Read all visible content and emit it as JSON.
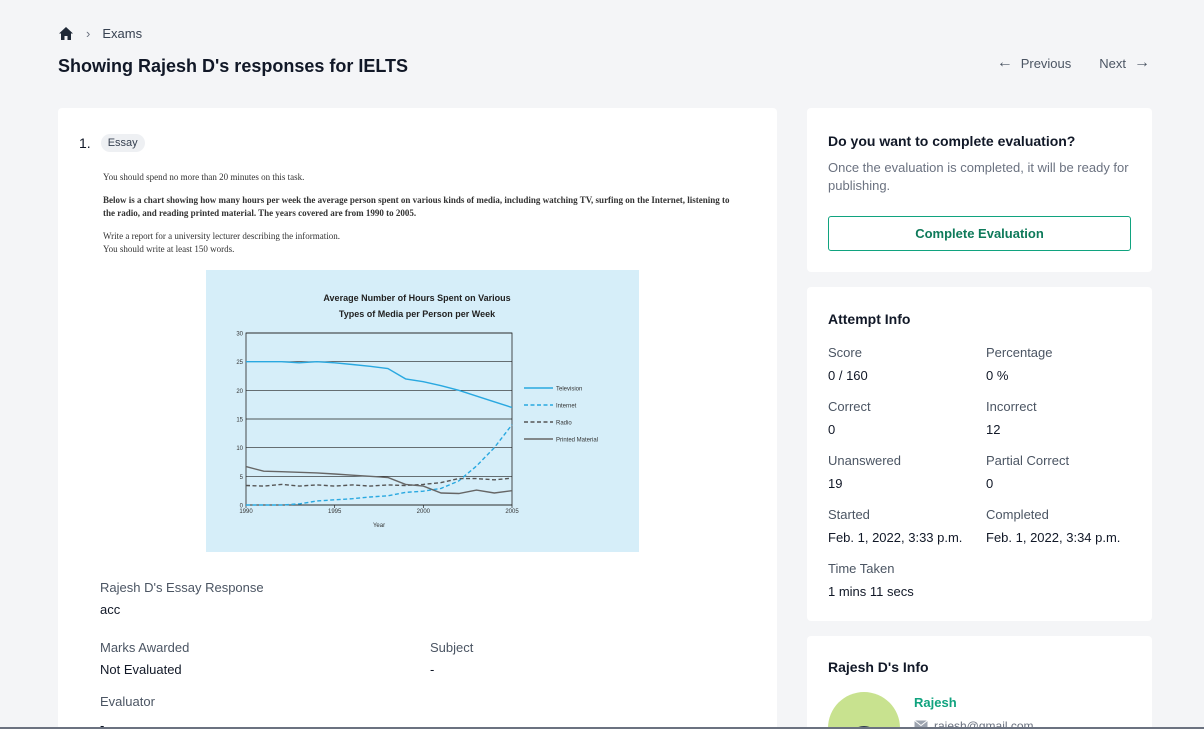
{
  "breadcrumb": {
    "current": "Exams"
  },
  "page_title": "Showing Rajesh D's responses for IELTS",
  "pager": {
    "previous": "Previous",
    "next": "Next"
  },
  "question": {
    "number": "1.",
    "type_badge": "Essay",
    "instructions": [
      "You should spend no more than 20 minutes on this task.",
      "Below is a chart showing how many hours per week the average person spent on various kinds of media, including watching TV, surfing on the Internet, listening to the radio, and reading printed material. The years covered are from 1990 to 2005.",
      "Write a report for a university lecturer describing the information.",
      "You should write at least 150 words."
    ]
  },
  "chart_data": {
    "type": "line",
    "title": "Average Number of Hours Spent on Various Types of Media per Person per Week",
    "xlabel": "Year",
    "ylabel": "",
    "xlim": [
      1990,
      2005
    ],
    "ylim": [
      0,
      30
    ],
    "x_ticks": [
      "1990",
      "1995",
      "2000",
      "2005"
    ],
    "y_ticks": [
      "0",
      "5",
      "10",
      "15",
      "20",
      "25",
      "30"
    ],
    "grid": "horizontal",
    "legend_position": "right",
    "x": [
      1990,
      1991,
      1992,
      1993,
      1994,
      1995,
      1996,
      1997,
      1998,
      1999,
      2000,
      2001,
      2002,
      2003,
      2004,
      2005
    ],
    "series": [
      {
        "name": "Television",
        "style": "solid",
        "color": "#29a8e0",
        "values": [
          25,
          25,
          25,
          24.8,
          25,
          24.8,
          24.5,
          24.2,
          23.8,
          22,
          21.5,
          20.8,
          20,
          19,
          18,
          17
        ]
      },
      {
        "name": "Internet",
        "style": "dashed",
        "color": "#29a8e0",
        "values": [
          0,
          0,
          0,
          0.2,
          0.7,
          0.9,
          1.1,
          1.4,
          1.6,
          2.2,
          2.4,
          2.9,
          4.2,
          6.8,
          10,
          14
        ]
      },
      {
        "name": "Radio",
        "style": "dashed",
        "color": "#555555",
        "values": [
          3.4,
          3.3,
          3.6,
          3.3,
          3.5,
          3.3,
          3.5,
          3.3,
          3.5,
          3.4,
          3.6,
          3.9,
          4.6,
          4.6,
          4.4,
          4.7
        ]
      },
      {
        "name": "Printed Material",
        "style": "solid",
        "color": "#666666",
        "values": [
          6.7,
          5.9,
          5.8,
          5.7,
          5.6,
          5.4,
          5.2,
          5.0,
          4.8,
          3.6,
          3.3,
          2.1,
          2.0,
          2.6,
          2.1,
          2.5
        ]
      }
    ]
  },
  "response": {
    "label": "Rajesh D's Essay Response",
    "value": "acc",
    "marks_label": "Marks Awarded",
    "marks_value": "Not Evaluated",
    "subject_label": "Subject",
    "subject_value": "-",
    "evaluator_label": "Evaluator",
    "evaluator_value": "-"
  },
  "evaluation_card": {
    "title": "Do you want to complete evaluation?",
    "description": "Once the evaluation is completed, it will be ready for publishing.",
    "button": "Complete Evaluation"
  },
  "attempt_info": {
    "title": "Attempt Info",
    "items": [
      {
        "key": "Score",
        "value": "0 / 160"
      },
      {
        "key": "Percentage",
        "value": "0 %"
      },
      {
        "key": "Correct",
        "value": "0"
      },
      {
        "key": "Incorrect",
        "value": "12"
      },
      {
        "key": "Unanswered",
        "value": "19"
      },
      {
        "key": "Partial Correct",
        "value": "0"
      },
      {
        "key": "Started",
        "value": "Feb. 1, 2022, 3:33 p.m."
      },
      {
        "key": "Completed",
        "value": "Feb. 1, 2022, 3:34 p.m."
      },
      {
        "key": "Time Taken",
        "value": "1 mins 11 secs"
      }
    ]
  },
  "user_info": {
    "title": "Rajesh D's Info",
    "name": "Rajesh",
    "email": "rajesh@gmail.com"
  },
  "colors": {
    "accent": "#10a37f",
    "chart_bg": "#d6eef9"
  }
}
